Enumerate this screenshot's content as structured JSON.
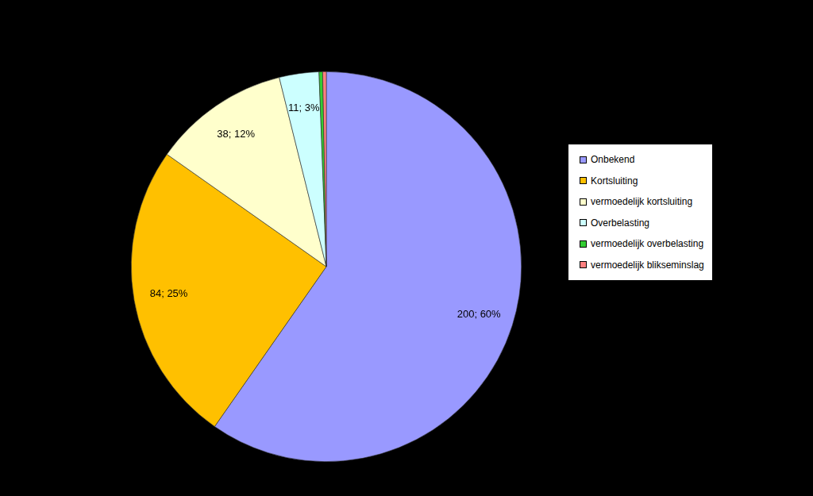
{
  "chart_data": {
    "type": "pie",
    "categories": [
      "Onbekend",
      "Kortsluiting",
      "vermoedelijk kortsluiting",
      "Overbelasting",
      "vermoedelijk overbelasting",
      "vermoedelijk blikseminslag"
    ],
    "values": [
      200,
      84,
      38,
      11,
      1,
      1
    ],
    "value_labels": [
      "200; 60%",
      "84; 25%",
      "38; 12%",
      "11; 3%",
      null,
      null
    ],
    "colors": [
      "#9999ff",
      "#ffc000",
      "#ffffcc",
      "#ccffff",
      "#33cc33",
      "#ff8080"
    ],
    "data_labels": true,
    "legend": "right"
  }
}
